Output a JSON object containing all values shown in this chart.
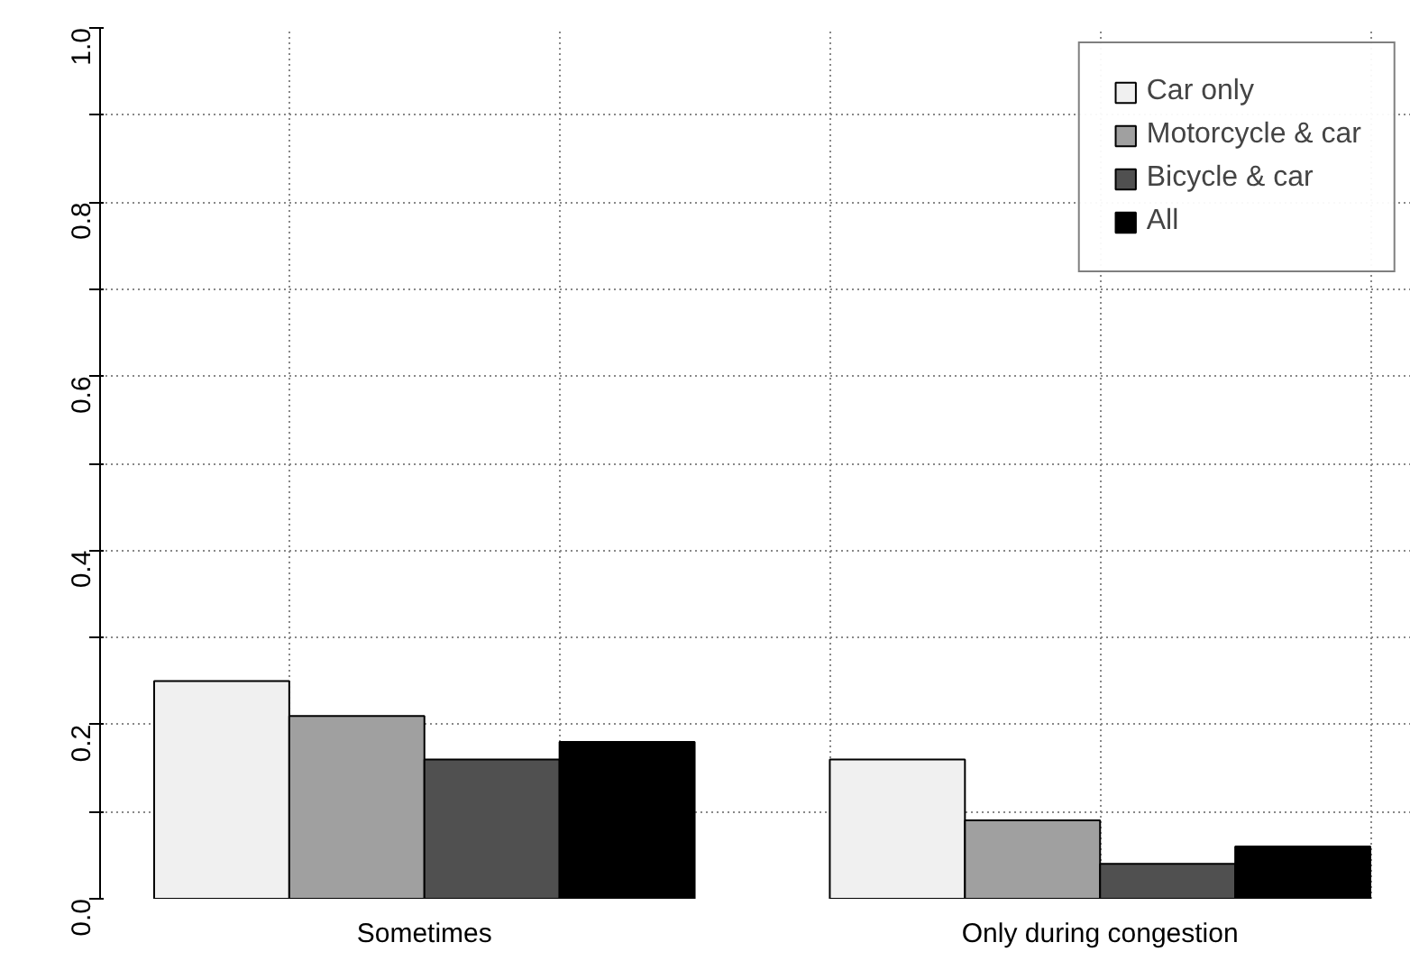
{
  "chart_data": {
    "type": "bar",
    "categories": [
      "Sometimes",
      "Only during congestion"
    ],
    "series": [
      {
        "name": "Car only",
        "color": "#f0f0f0",
        "values": [
          0.25,
          0.16
        ]
      },
      {
        "name": "Motorcycle & car",
        "color": "#a0a0a0",
        "values": [
          0.21,
          0.09
        ]
      },
      {
        "name": "Bicycle & car",
        "color": "#505050",
        "values": [
          0.16,
          0.04
        ]
      },
      {
        "name": "All",
        "color": "#000000",
        "values": [
          0.18,
          0.06
        ]
      }
    ],
    "ylim": [
      0,
      1
    ],
    "yticks": [
      {
        "value": 0,
        "label": "0.0"
      },
      {
        "value": 0.1,
        "label": null
      },
      {
        "value": 0.2,
        "label": "0.2"
      },
      {
        "value": 0.3,
        "label": null
      },
      {
        "value": 0.4,
        "label": "0.4"
      },
      {
        "value": 0.5,
        "label": null
      },
      {
        "value": 0.6,
        "label": "0.6"
      },
      {
        "value": 0.7,
        "label": null
      },
      {
        "value": 0.8,
        "label": "0.8"
      },
      {
        "value": 0.9,
        "label": null
      },
      {
        "value": 1,
        "label": "1.0"
      }
    ],
    "grid": true,
    "legend": "top right"
  }
}
